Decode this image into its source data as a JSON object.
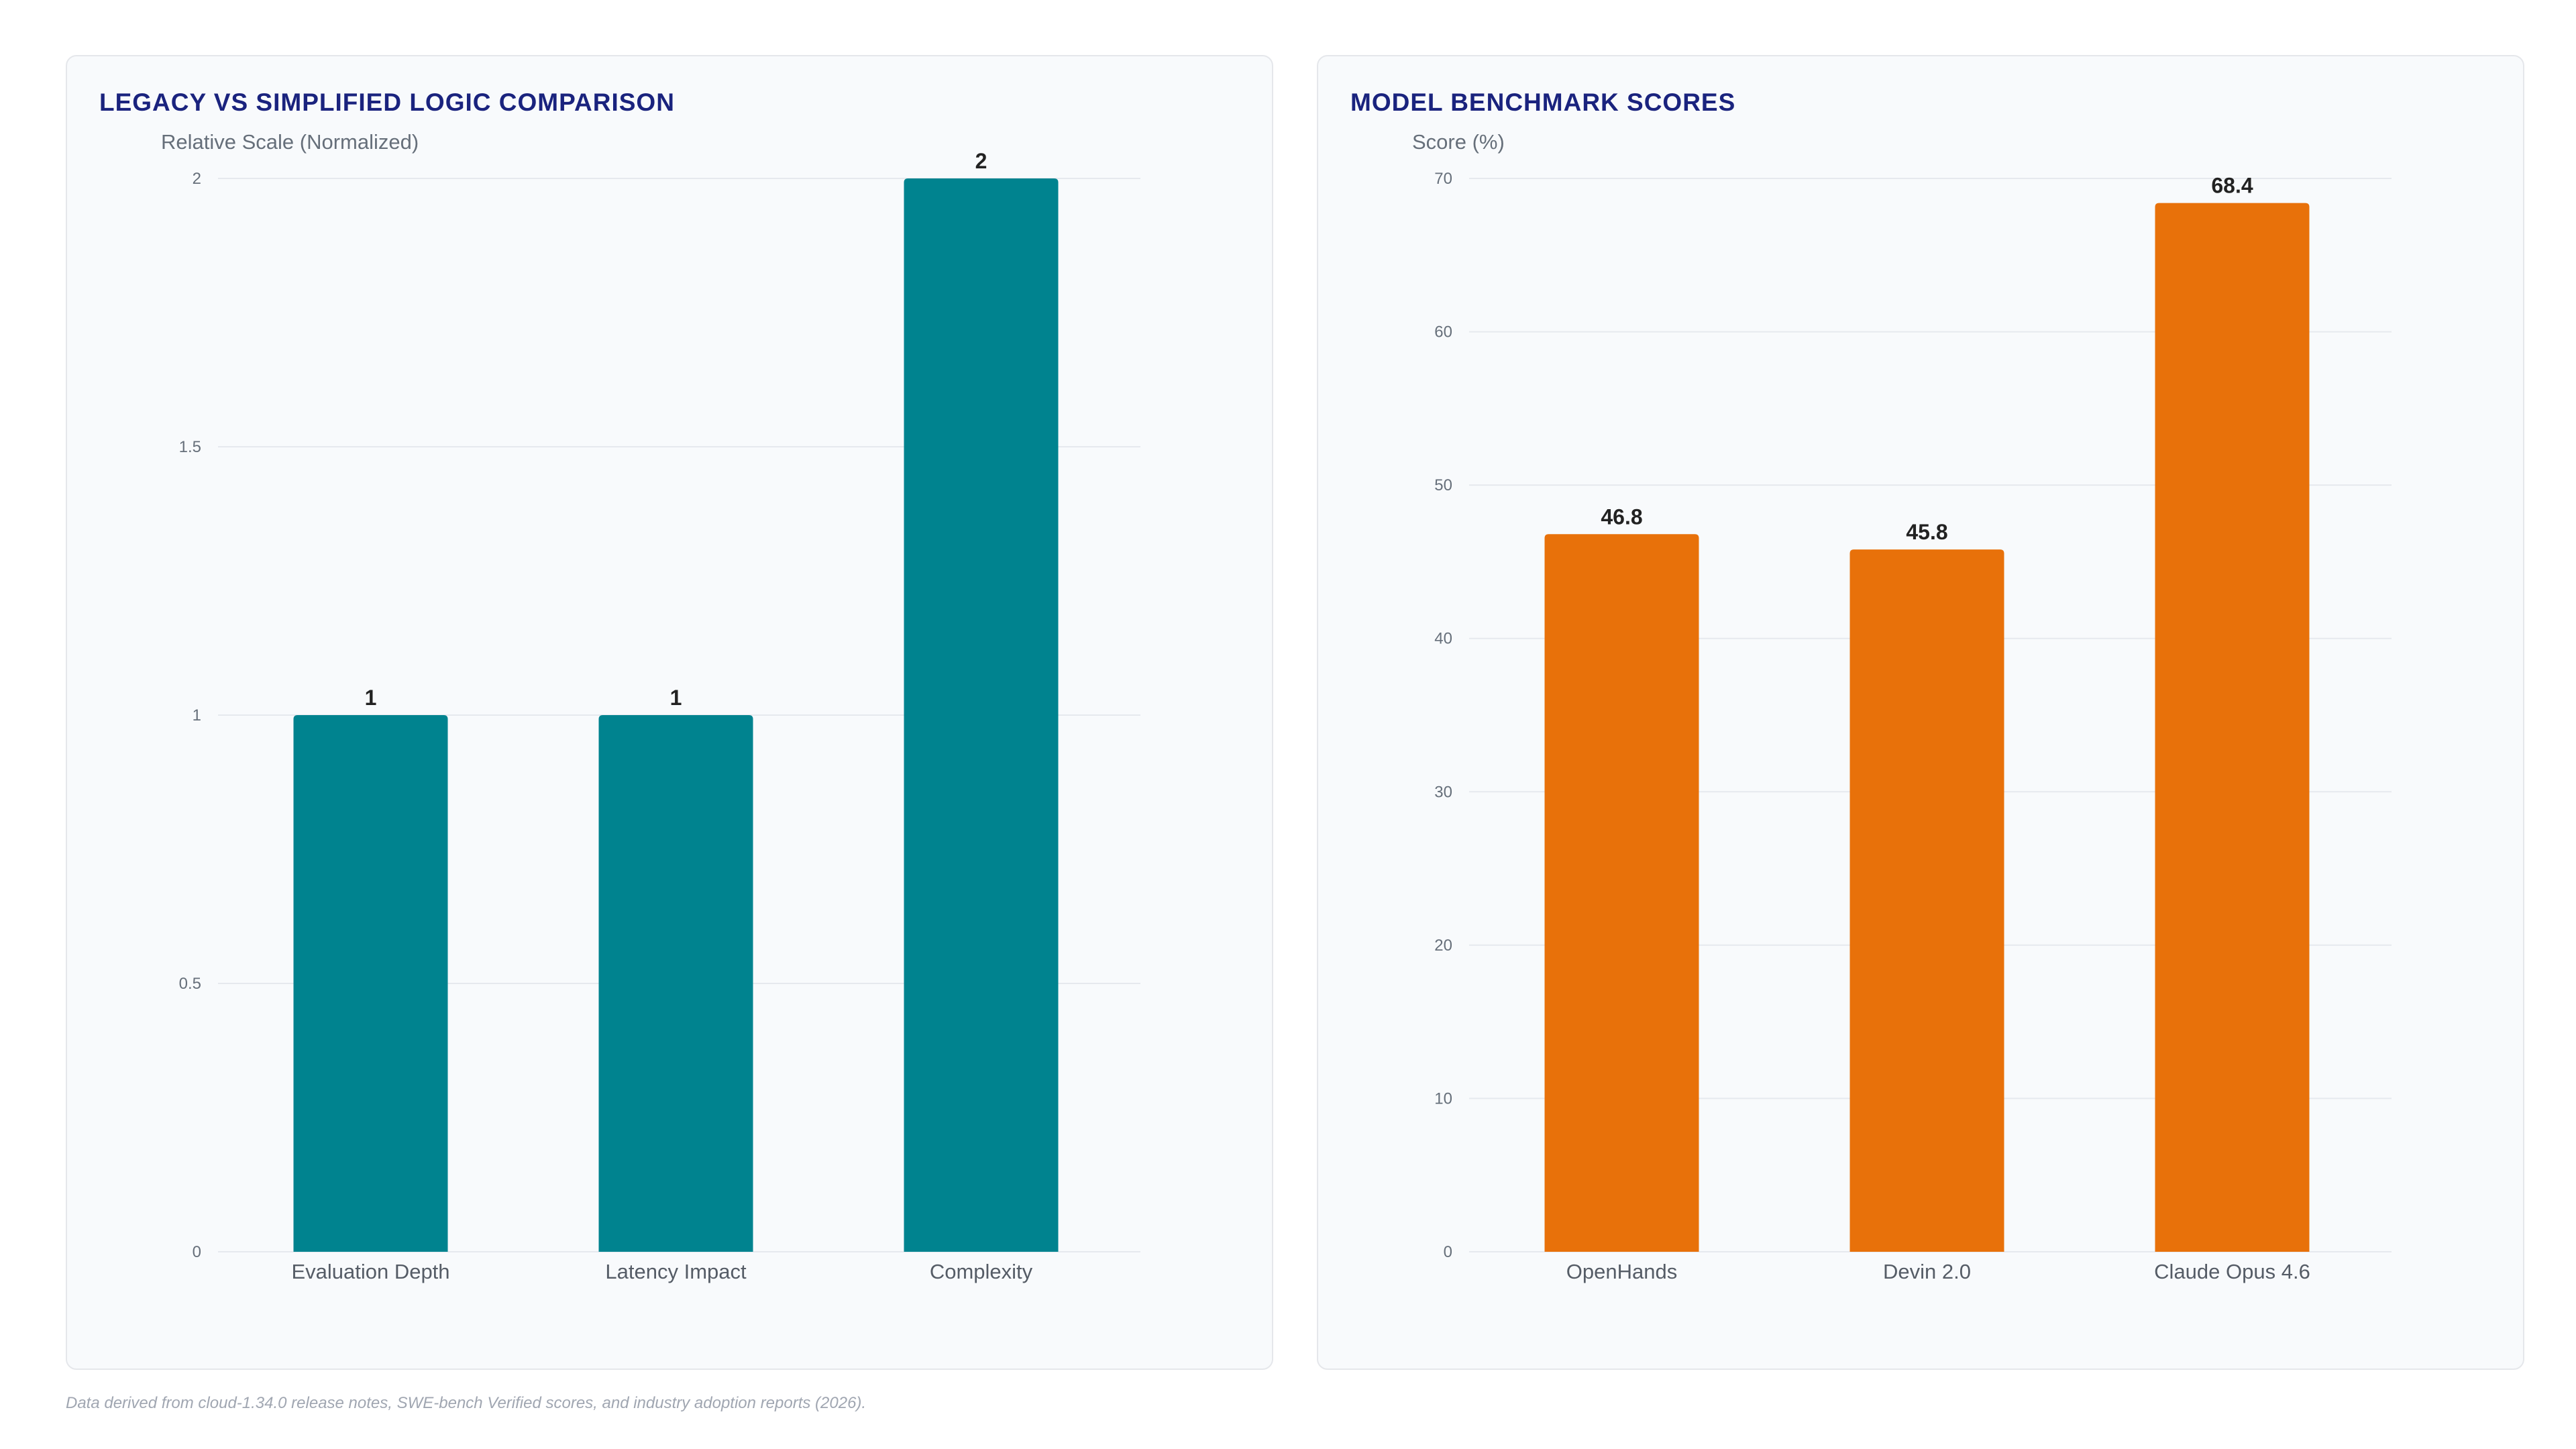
{
  "chart_data": [
    {
      "type": "bar",
      "title": "LEGACY VS SIMPLIFIED LOGIC COMPARISON",
      "ylabel": "Relative Scale (Normalized)",
      "xlabel": "",
      "categories": [
        "Evaluation Depth",
        "Latency Impact",
        "Complexity"
      ],
      "values": [
        1,
        1,
        2
      ],
      "data_labels": [
        "1",
        "1",
        "2"
      ],
      "ylim": [
        0,
        2
      ],
      "yticks": [
        0,
        0.5,
        1,
        1.5,
        2
      ],
      "ytick_labels": [
        "0",
        "0.5",
        "1",
        "1.5",
        "2"
      ],
      "grid": true,
      "color": "#00838f"
    },
    {
      "type": "bar",
      "title": "MODEL BENCHMARK SCORES",
      "ylabel": "Score (%)",
      "xlabel": "",
      "categories": [
        "OpenHands",
        "Devin 2.0",
        "Claude Opus 4.6"
      ],
      "values": [
        46.8,
        45.8,
        68.4
      ],
      "data_labels": [
        "46.8",
        "45.8",
        "68.4"
      ],
      "ylim": [
        0,
        70
      ],
      "yticks": [
        0,
        10,
        20,
        30,
        40,
        50,
        60,
        70
      ],
      "ytick_labels": [
        "0",
        "10",
        "20",
        "30",
        "40",
        "50",
        "60",
        "70"
      ],
      "grid": true,
      "color": "#e8710a"
    }
  ],
  "footnote": "Data derived from cloud-1.34.0 release notes, SWE-bench Verified scores, and industry adoption reports (2026)."
}
